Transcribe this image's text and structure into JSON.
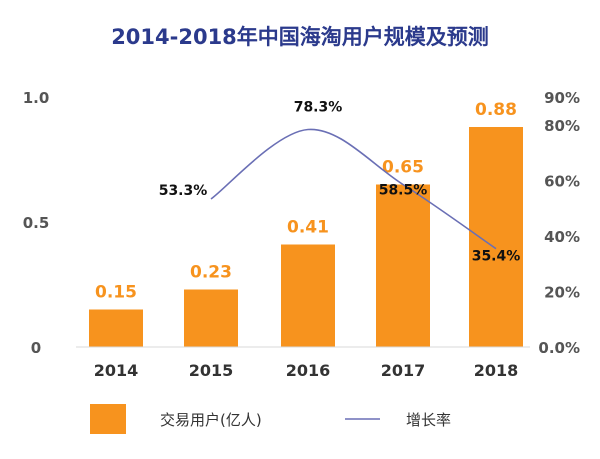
{
  "chart_data": {
    "type": "bar",
    "title": "2014-2018年中国海淘用户规模及预测",
    "categories": [
      "2014",
      "2015",
      "2016",
      "2017",
      "2018"
    ],
    "series": [
      {
        "name": "交易用户(亿人)",
        "type": "bar",
        "axis": "left",
        "values": [
          0.15,
          0.23,
          0.41,
          0.65,
          0.88
        ],
        "labels": [
          "0.15",
          "0.23",
          "0.41",
          "0.65",
          "0.88"
        ]
      },
      {
        "name": "增长率",
        "type": "line",
        "axis": "right",
        "x": [
          "2015",
          "2016",
          "2017",
          "2018"
        ],
        "values": [
          53.3,
          78.3,
          58.5,
          35.4
        ],
        "labels": [
          "53.3%",
          "78.3%",
          "58.5%",
          "35.4%"
        ]
      }
    ],
    "y_left": {
      "ticks": [
        0,
        0.5,
        1.0
      ],
      "tick_labels": [
        "0",
        "0.5",
        "1.0"
      ],
      "range": [
        0,
        1.0
      ]
    },
    "y_right": {
      "ticks": [
        0,
        20,
        40,
        60,
        80,
        90
      ],
      "tick_labels": [
        "0.0%",
        "20%",
        "40%",
        "60%",
        "80%",
        "90%"
      ],
      "range": [
        0,
        90
      ]
    },
    "legend_position": "bottom",
    "grid": false,
    "colors": {
      "title": "#2b3a8c",
      "bar": "#f7931e",
      "bar_label": "#f7931e",
      "line": "#6a6fb5",
      "axis_text": "#555555",
      "data_text": "#111111"
    }
  }
}
